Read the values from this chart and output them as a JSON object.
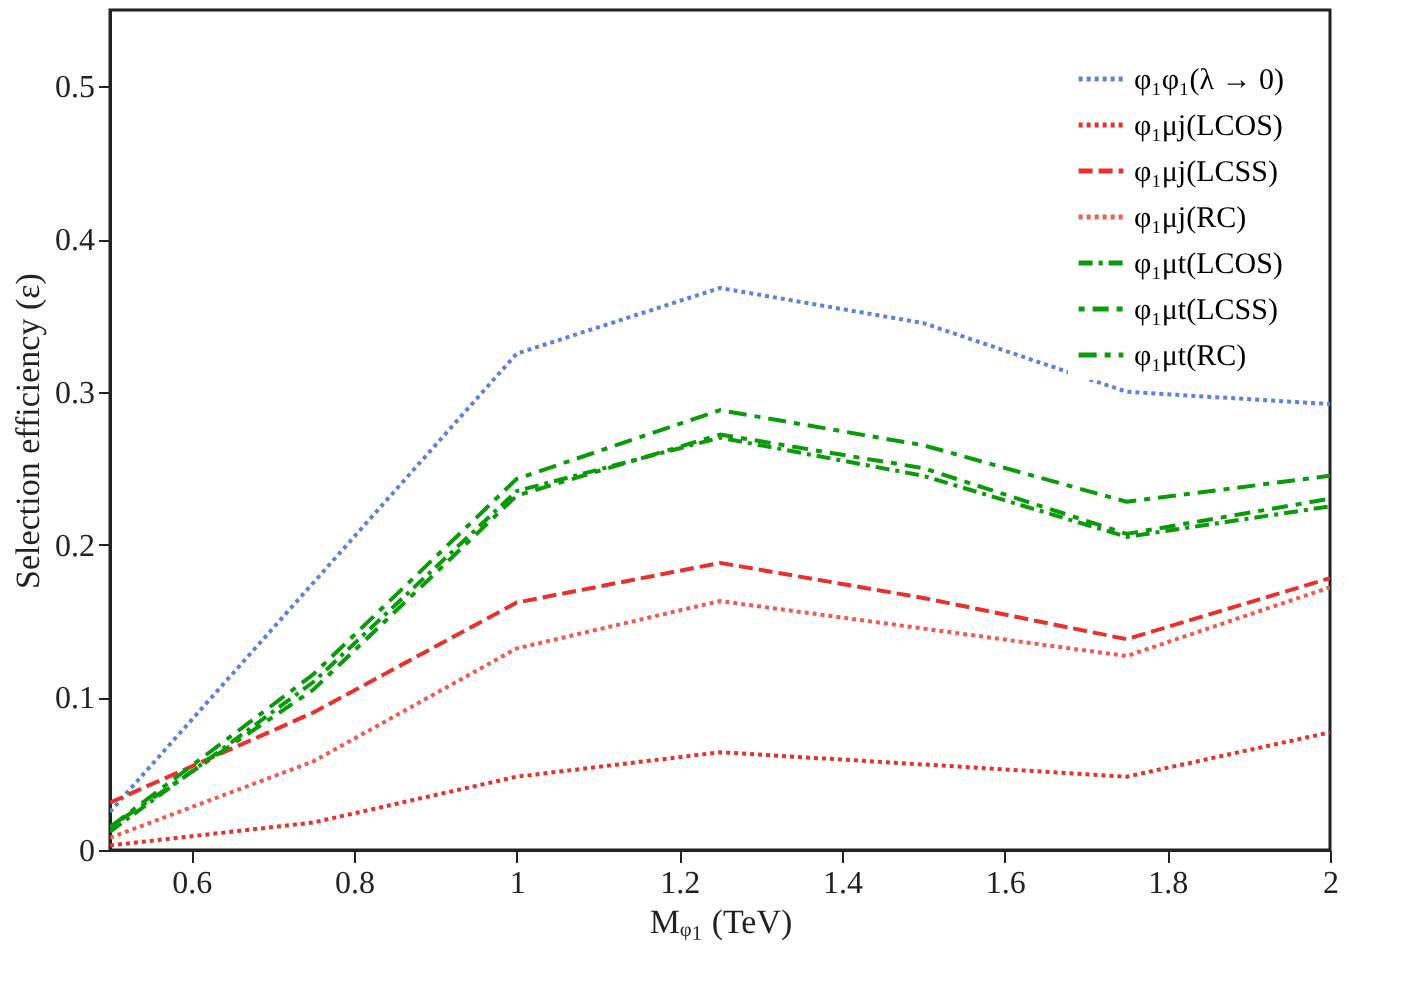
{
  "chart_data": {
    "type": "line",
    "xlabel": "Mᵩ₁ (TeV)",
    "ylabel": "Selection efficiency (ε)",
    "x": [
      0.5,
      0.75,
      1,
      1.25,
      1.5,
      1.75,
      2
    ],
    "series": [
      {
        "name": "φ₁φ₁(λ → 0)",
        "color": "#5b82e0",
        "line_style": "dotted",
        "values": [
          0.025,
          0.175,
          0.325,
          0.368,
          0.345,
          0.3,
          0.292
        ]
      },
      {
        "name": "φ₁μj(LCOS)",
        "color": "#e8302c",
        "line_style": "dotted",
        "values": [
          0.003,
          0.018,
          0.048,
          0.064,
          0.056,
          0.048,
          0.077
        ]
      },
      {
        "name": "φ₁μj(LCSS)",
        "color": "#e8302c",
        "line_style": "dashed",
        "values": [
          0.031,
          0.09,
          0.162,
          0.188,
          0.165,
          0.138,
          0.178
        ]
      },
      {
        "name": "φ₁μj(RC)",
        "color": "#f05a50",
        "line_style": "dotted",
        "values": [
          0.008,
          0.058,
          0.132,
          0.163,
          0.145,
          0.127,
          0.172
        ]
      },
      {
        "name": "φ₁μt(LCOS)",
        "color": "#0a9a0a",
        "line_style": "dashed",
        "values": [
          0.012,
          0.11,
          0.235,
          0.27,
          0.245,
          0.205,
          0.225
        ]
      },
      {
        "name": "φ₁μt(LCSS)",
        "color": "#0a9a0a",
        "line_style": "dashed",
        "values": [
          0.015,
          0.105,
          0.232,
          0.272,
          0.25,
          0.207,
          0.23
        ]
      },
      {
        "name": "φ₁μt(RC)",
        "color": "#0a9a0a",
        "line_style": "dashed",
        "values": [
          0.015,
          0.115,
          0.243,
          0.288,
          0.265,
          0.228,
          0.245
        ]
      }
    ],
    "xlim": [
      0.5,
      2
    ],
    "xticks": [
      0.6,
      0.8,
      1,
      1.2,
      1.4,
      1.6,
      1.8,
      2
    ],
    "ylim": [
      0,
      0.55
    ],
    "yticks": [
      0,
      0.1,
      0.2,
      0.3,
      0.4,
      0.5
    ],
    "grid": false,
    "legend": "top right",
    "marker": "none"
  }
}
